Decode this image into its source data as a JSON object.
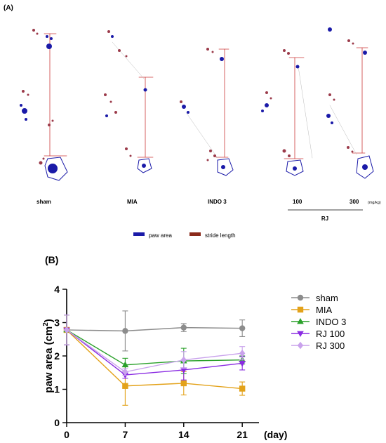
{
  "panel_a": {
    "label": "(A)",
    "group_labels": [
      "sham",
      "MIA",
      "INDO 3",
      "100",
      "300"
    ],
    "unit_note": "(mg/kg)",
    "rj_label": "RJ",
    "legend": [
      {
        "name": "paw area",
        "color": "#1a1aa8"
      },
      {
        "name": "stride length",
        "color": "#8b2a1a"
      }
    ]
  },
  "panel_b": {
    "label": "(B)"
  },
  "chart_data": {
    "type": "line",
    "title": "",
    "xlabel": "(day)",
    "ylabel": "paw area (cm",
    "ylabel_sup": "2",
    "ylabel_close": ")",
    "x": [
      0,
      7,
      14,
      21
    ],
    "xticks": [
      "0",
      "7",
      "14",
      "21"
    ],
    "yticks": [
      "0",
      "1",
      "2",
      "3",
      "4"
    ],
    "xlim": [
      0,
      23
    ],
    "ylim": [
      0,
      4
    ],
    "grid": false,
    "legend_position": "right",
    "series": [
      {
        "name": "sham",
        "color": "#8c8c8c",
        "marker": "circle",
        "values": [
          2.78,
          2.75,
          2.85,
          2.83
        ],
        "errors": [
          0.45,
          0.6,
          0.12,
          0.25
        ]
      },
      {
        "name": "MIA",
        "color": "#e3a21a",
        "marker": "square",
        "values": [
          2.78,
          1.1,
          1.18,
          1.02
        ],
        "errors": [
          0.45,
          0.58,
          0.35,
          0.2
        ]
      },
      {
        "name": "INDO 3",
        "color": "#2aa02a",
        "marker": "triangle-up",
        "values": [
          2.78,
          1.73,
          1.85,
          1.88
        ],
        "errors": [
          0.45,
          0.2,
          0.38,
          0.12
        ]
      },
      {
        "name": "RJ 100",
        "color": "#8a2be2",
        "marker": "triangle-down",
        "values": [
          2.78,
          1.43,
          1.58,
          1.78
        ],
        "errors": [
          0.45,
          0.1,
          0.3,
          0.2
        ]
      },
      {
        "name": "RJ 300",
        "color": "#c9a2ec",
        "marker": "diamond",
        "values": [
          2.78,
          1.52,
          1.88,
          2.08
        ],
        "errors": [
          0.45,
          0.1,
          0.25,
          0.2
        ]
      }
    ]
  }
}
